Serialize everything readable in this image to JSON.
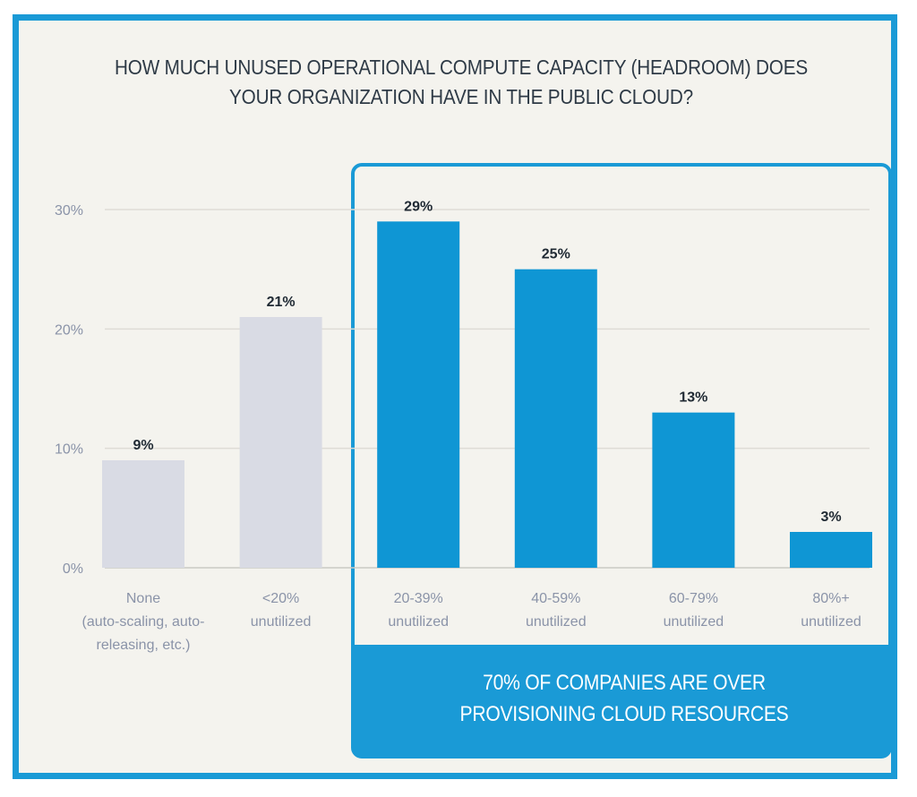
{
  "chart_data": {
    "type": "bar",
    "title_lines": [
      "HOW MUCH UNUSED OPERATIONAL COMPUTE CAPACITY (HEADROOM) DOES",
      "YOUR ORGANIZATION HAVE IN THE PUBLIC CLOUD?"
    ],
    "categories": [
      [
        "None",
        "(auto-scaling, auto-",
        "releasing, etc.)"
      ],
      [
        "<20%",
        "unutilized"
      ],
      [
        "20-39%",
        "unutilized"
      ],
      [
        "40-59%",
        "unutilized"
      ],
      [
        "60-79%",
        "unutilized"
      ],
      [
        "80%+",
        "unutilized"
      ]
    ],
    "values": [
      9,
      21,
      29,
      25,
      13,
      3
    ],
    "value_labels": [
      "9%",
      "21%",
      "29%",
      "25%",
      "13%",
      "3%"
    ],
    "highlighted": [
      false,
      false,
      true,
      true,
      true,
      true
    ],
    "yticks": [
      "0%",
      "10%",
      "20%",
      "30%"
    ],
    "ylim": [
      0,
      30
    ],
    "grid": true,
    "colors": {
      "muted": "#d9dbe4",
      "highlight": "#0f96d4",
      "frame": "#1a9ad6"
    },
    "callout_lines": [
      "70% OF COMPANIES ARE OVER",
      "PROVISIONING CLOUD RESOURCES"
    ]
  }
}
